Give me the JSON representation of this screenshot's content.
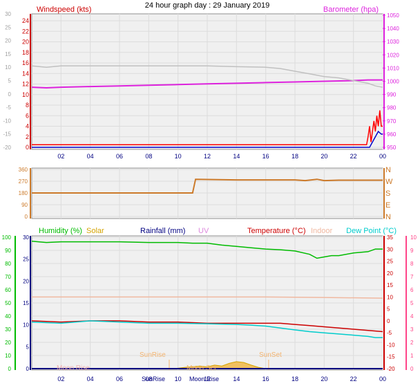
{
  "title": "24 hour graph day : 29 January 2019",
  "colors": {
    "wind": "#cc0000",
    "gust_line": "#ff0000",
    "avg_line": "#0000cc",
    "baro": "#dd22dd",
    "outtemp_grey": "#c0c0c0",
    "dir": "#cc7a2a",
    "humidity": "#00bb00",
    "solar": "#d4a300",
    "rain": "#000080",
    "uv": "#dd88dd",
    "temperature": "#cc0000",
    "indoor": "#f0b8a0",
    "dewpoint": "#00cccc",
    "temp_axis": "#ff4488",
    "sun": "#f4b470",
    "moon": "#f0b0b0"
  },
  "x_ticks": [
    "02",
    "04",
    "06",
    "08",
    "10",
    "12",
    "14",
    "16",
    "18",
    "20",
    "22",
    "00"
  ],
  "chart_data": [
    {
      "type": "line",
      "title": "24 hour graph day : 29 January 2019",
      "left_label": "Windspeed (kts)",
      "right_label": "Barometer (hpa)",
      "y_left_ticks": [
        "24",
        "22",
        "20",
        "18",
        "16",
        "14",
        "12",
        "10",
        "8",
        "6",
        "4",
        "2",
        "0"
      ],
      "y_left_ylim": [
        0,
        24
      ],
      "y_outer_ticks": [
        "30",
        "25",
        "20",
        "15",
        "10",
        "5",
        "0",
        "-5",
        "-10",
        "-15",
        "-20"
      ],
      "y_outer_ylim": [
        -20,
        30
      ],
      "y_right_ticks": [
        "1050",
        "1040",
        "1030",
        "1020",
        "1010",
        "1000",
        "990",
        "980",
        "970",
        "960",
        "950"
      ],
      "y_right_ylim": [
        950,
        1050
      ],
      "x_range": [
        0,
        24
      ],
      "series": [
        {
          "key": "baro",
          "color": "baro",
          "axis": "right",
          "x": [
            0,
            1,
            2,
            4,
            6,
            8,
            10,
            12,
            14,
            16,
            18,
            20,
            22,
            23,
            24
          ],
          "y": [
            995.5,
            995,
            995.5,
            996,
            996.5,
            997,
            997.5,
            998,
            998.5,
            999,
            999.5,
            1000,
            1000.5,
            1001,
            1001
          ]
        },
        {
          "key": "outer",
          "color": "outtemp_grey",
          "axis": "outer",
          "x": [
            0,
            1,
            2,
            4,
            6,
            8,
            10,
            12,
            14,
            16,
            17,
            18,
            19,
            20,
            21,
            22,
            23,
            23.5,
            24
          ],
          "y": [
            10.5,
            10,
            10.5,
            10.5,
            10.5,
            10.5,
            10.5,
            10.5,
            10.2,
            10,
            9.5,
            8.5,
            7.5,
            6.5,
            6,
            5,
            4,
            3,
            2.5
          ]
        },
        {
          "key": "gust",
          "color": "gust_line",
          "axis": "left",
          "x": [
            0,
            22.9,
            23.0,
            23.1,
            23.2,
            23.3,
            23.4,
            23.5,
            23.6,
            23.7,
            23.8,
            23.9,
            24
          ],
          "y": [
            0.5,
            0.5,
            2,
            4,
            1,
            3,
            5,
            3,
            6,
            4,
            7,
            4,
            4
          ]
        },
        {
          "key": "avg",
          "color": "avg_line",
          "axis": "left",
          "x": [
            0,
            23.1,
            23.3,
            23.5,
            23.7,
            23.9,
            24
          ],
          "y": [
            0,
            0,
            1,
            2,
            3,
            2.5,
            2.5
          ]
        }
      ]
    },
    {
      "type": "line",
      "y_left_ticks": [
        "360",
        "270",
        "180",
        "90",
        "0"
      ],
      "y_left_ylim": [
        0,
        360
      ],
      "y_right_ticks": [
        "N",
        "W",
        "S",
        "E",
        "N"
      ],
      "x_range": [
        0,
        24
      ],
      "series": [
        {
          "key": "dir",
          "color": "dir",
          "x": [
            0,
            10.8,
            11.0,
            11.2,
            14,
            18,
            18.7,
            19.5,
            20,
            21,
            22,
            24
          ],
          "y": [
            180,
            180,
            180,
            285,
            280,
            280,
            275,
            285,
            275,
            278,
            278,
            278
          ]
        }
      ]
    },
    {
      "type": "line",
      "labels": [
        "Humidity (%)",
        "Solar",
        "Rainfall (mm)",
        "UV",
        "Temperature (°C)",
        "Indoor",
        "Dew Point (°C)"
      ],
      "y_left_ticks": [
        "100",
        "90",
        "80",
        "70",
        "60",
        "50",
        "40",
        "30",
        "20",
        "10",
        "0"
      ],
      "y_left_ylim": [
        0,
        100
      ],
      "y_inner_ticks": [
        "30",
        "25",
        "20",
        "15",
        "10",
        "5",
        "0"
      ],
      "y_inner_ylim": [
        0,
        30
      ],
      "y_right_ticks": [
        "35",
        "30",
        "25",
        "20",
        "15",
        "10",
        "5",
        "0",
        "-5",
        "-10",
        "-15",
        "-20"
      ],
      "y_right_ylim": [
        -20,
        35
      ],
      "y_uv_ticks": [
        "10",
        "9",
        "8",
        "7",
        "6",
        "5",
        "4",
        "3",
        "2",
        "1",
        "0"
      ],
      "y_uv_ylim": [
        0,
        10
      ],
      "x_range": [
        0,
        24
      ],
      "sun_labels": {
        "sunrise_top": "SunRise",
        "sunset_top": "SunSet",
        "moonrise": "Moon Rise",
        "sunrise_bottom": "SunRise",
        "moonset": "Moon Set"
      },
      "series": [
        {
          "key": "humidity",
          "color": "humidity",
          "axis": "left",
          "x": [
            0,
            1,
            2,
            4,
            6,
            8,
            10,
            11,
            12,
            13,
            14,
            15,
            16,
            17,
            18,
            19,
            19.5,
            20,
            20.5,
            21,
            22,
            23,
            23.5,
            24
          ],
          "y": [
            97,
            96,
            96.5,
            96.5,
            96.5,
            96,
            96,
            95.5,
            95.5,
            94,
            93,
            92,
            91,
            90.5,
            89.5,
            87,
            84,
            85,
            86,
            86,
            88,
            89,
            91,
            91
          ]
        },
        {
          "key": "indoor",
          "color": "indoor",
          "axis": "right",
          "x": [
            0,
            4,
            8,
            12,
            16,
            20,
            24
          ],
          "y": [
            10,
            10,
            10,
            10,
            10,
            9.8,
            9.5
          ]
        },
        {
          "key": "temperature",
          "color": "temperature",
          "axis": "right",
          "x": [
            0,
            2,
            4,
            6,
            8,
            10,
            12,
            14,
            16,
            17,
            18,
            19,
            20,
            21,
            22,
            23,
            24
          ],
          "y": [
            0,
            -0.5,
            0,
            0,
            -0.5,
            -0.5,
            -1,
            -1,
            -1,
            -1,
            -1.5,
            -2,
            -2.5,
            -3,
            -3.5,
            -4,
            -4.5
          ]
        },
        {
          "key": "dewpoint",
          "color": "dewpoint",
          "axis": "right",
          "x": [
            0,
            2,
            4,
            6,
            8,
            10,
            12,
            14,
            15,
            16,
            17,
            18,
            19,
            20,
            21,
            22,
            23,
            23.5,
            24
          ],
          "y": [
            -0.5,
            -1,
            0,
            -0.5,
            -1,
            -1,
            -1.2,
            -1.5,
            -1.8,
            -2.2,
            -3,
            -3.8,
            -4.5,
            -5,
            -5.5,
            -6,
            -6.5,
            -7,
            -7
          ]
        },
        {
          "key": "solar",
          "color": "solar",
          "axis": "inner",
          "x": [
            0,
            9.7,
            10.5,
            11.5,
            12,
            12.5,
            13,
            13.5,
            14,
            14.5,
            15,
            15.5,
            16,
            24
          ],
          "y": [
            0,
            0,
            0.3,
            0.6,
            0.4,
            0.8,
            0.6,
            1.2,
            1.6,
            1.4,
            0.8,
            0.3,
            0,
            0
          ]
        },
        {
          "key": "rain",
          "color": "rain",
          "axis": "inner",
          "x": [
            0,
            24
          ],
          "y": [
            0,
            0
          ]
        }
      ]
    }
  ]
}
